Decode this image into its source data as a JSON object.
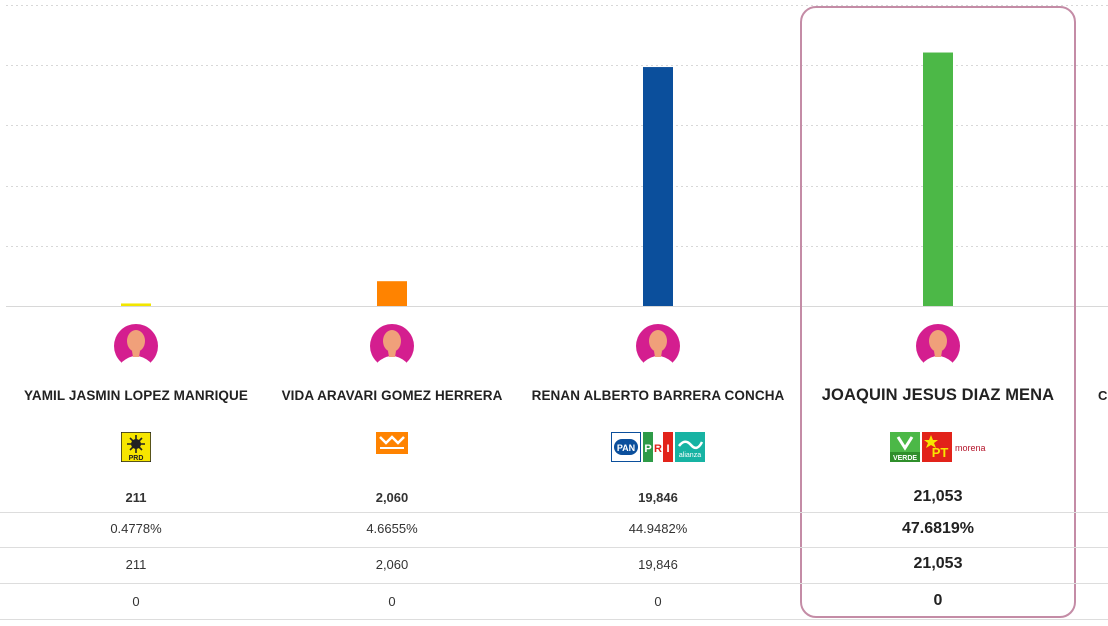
{
  "chart_data": {
    "type": "bar",
    "categories": [
      "YAMIL JASMIN LOPEZ MANRIQUE",
      "VIDA ARAVARI GOMEZ HERRERA",
      "RENAN ALBERTO BARRERA CONCHA",
      "JOAQUIN JESUS DIAZ MENA"
    ],
    "values": [
      211,
      2060,
      19846,
      21053
    ],
    "colors": [
      "#f2e600",
      "#ff8300",
      "#0b4f9c",
      "#4cb847"
    ],
    "ylim": [
      0,
      25000
    ],
    "grid": true
  },
  "candidates": [
    {
      "name": "YAMIL JASMIN LOPEZ MANRIQUE",
      "party_logos": [
        "prd-logo"
      ],
      "logo_text": [
        "PRD"
      ],
      "votes": "211",
      "percent": "0.4778%",
      "votes_repeat": "211",
      "extra": "0",
      "highlighted": false
    },
    {
      "name": "VIDA ARAVARI GOMEZ HERRERA",
      "party_logos": [
        "movimiento-ciudadano-logo"
      ],
      "logo_text": [],
      "votes": "2,060",
      "percent": "4.6655%",
      "votes_repeat": "2,060",
      "extra": "0",
      "highlighted": false
    },
    {
      "name": "RENAN ALBERTO BARRERA CONCHA",
      "party_logos": [
        "pan-logo",
        "pri-logo",
        "alianza-logo"
      ],
      "logo_text": [
        "PAN",
        "P",
        "R",
        "I",
        "alianza"
      ],
      "votes": "19,846",
      "percent": "44.9482%",
      "votes_repeat": "19,846",
      "extra": "0",
      "highlighted": false
    },
    {
      "name": "JOAQUIN JESUS DIAZ MENA",
      "party_logos": [
        "verde-logo",
        "pt-logo",
        "morena-logo"
      ],
      "logo_text": [
        "VERDE",
        "PT",
        "morena"
      ],
      "votes": "21,053",
      "percent": "47.6819%",
      "votes_repeat": "21,053",
      "extra": "0",
      "highlighted": true
    }
  ],
  "next_column_fragment": "C"
}
